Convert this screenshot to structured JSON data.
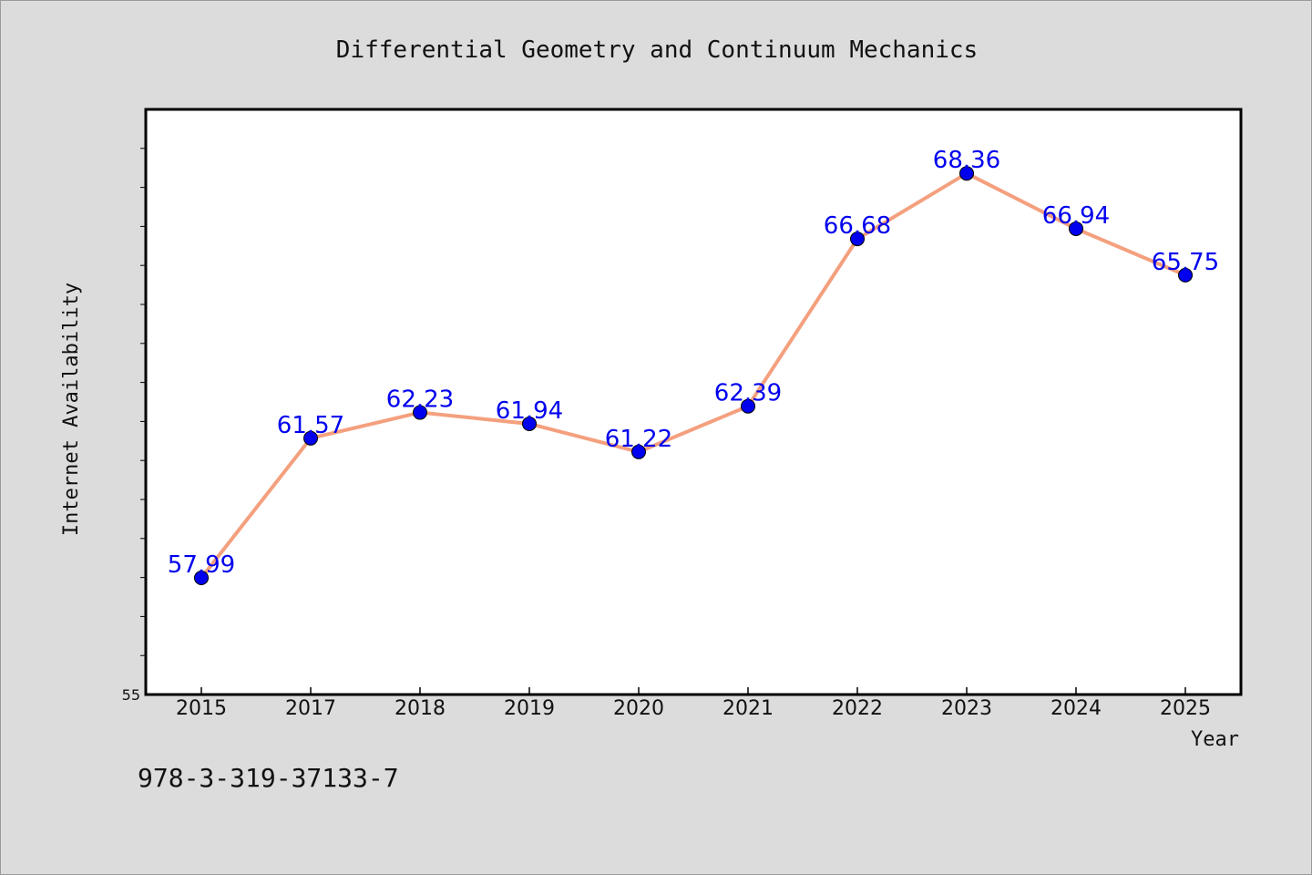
{
  "chart_data": {
    "type": "line",
    "title": "Differential Geometry and Continuum Mechanics",
    "xlabel": "Year",
    "ylabel": "Internet Availability",
    "categories": [
      "2015",
      "2017",
      "2018",
      "2019",
      "2020",
      "2021",
      "2022",
      "2023",
      "2024",
      "2025"
    ],
    "series": [
      {
        "values": [
          57.99,
          61.57,
          62.23,
          61.94,
          61.22,
          62.39,
          66.68,
          68.36,
          66.94,
          65.75
        ],
        "labels": [
          "57.99",
          "61.57",
          "62.23",
          "61.94",
          "61.22",
          "62.39",
          "66.68",
          "68.36",
          "66.94",
          "65.75"
        ]
      }
    ],
    "ylim": [
      55,
      70
    ],
    "yticks": [
      55
    ],
    "ytick_labels": [
      "55"
    ],
    "y_minor_step": 1,
    "grid": false,
    "line_color": "#f4a07e",
    "marker_color": "#0000ee",
    "label_color": "#0000ee"
  },
  "annotation": {
    "isbn": "978-3-319-37133-7"
  },
  "colors": {
    "background": "#dcdcdc",
    "plot_background": "#ffffff",
    "axis": "#000000"
  }
}
